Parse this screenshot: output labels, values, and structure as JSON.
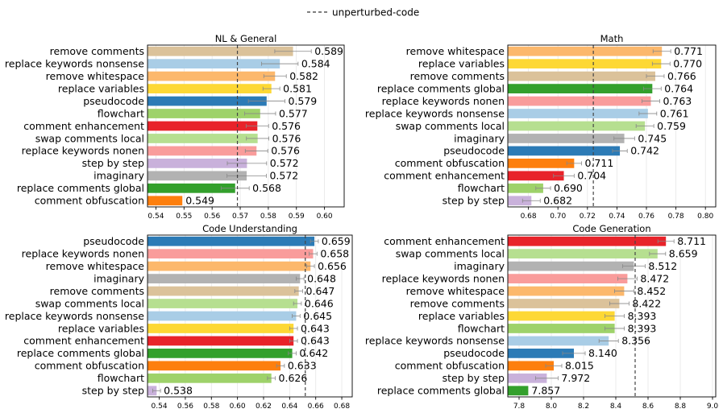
{
  "legend": {
    "label": "unperturbed-code",
    "placement": "top-center"
  },
  "chart_data": [
    {
      "type": "bar",
      "orientation": "horizontal",
      "title": "NL & General",
      "reference_line": 0.569,
      "xlim": [
        0.537,
        0.607
      ],
      "xticks": [
        0.54,
        0.55,
        0.56,
        0.57,
        0.58,
        0.59,
        0.6
      ],
      "xtick_labels": [
        "0.54",
        "0.55",
        "0.56",
        "0.57",
        "0.58",
        "0.59",
        "0.60"
      ],
      "bars": [
        {
          "label": "remove comments",
          "value": 0.5888,
          "value_label": "0.589",
          "err": 0.0065,
          "color": "#dbc29a"
        },
        {
          "label": "replace keywords nonsense",
          "value": 0.5841,
          "value_label": "0.584",
          "err": 0.0065,
          "color": "#a9cde6"
        },
        {
          "label": "remove whitespace",
          "value": 0.5824,
          "value_label": "0.582",
          "err": 0.004,
          "color": "#fcb86c"
        },
        {
          "label": "replace variables",
          "value": 0.5811,
          "value_label": "0.581",
          "err": 0.003,
          "color": "#fdd835"
        },
        {
          "label": "pseudocode",
          "value": 0.5794,
          "value_label": "0.579",
          "err": 0.0065,
          "color": "#2c7bb6"
        },
        {
          "label": "flowchart",
          "value": 0.5771,
          "value_label": "0.577",
          "err": 0.0055,
          "color": "#9ed26a"
        },
        {
          "label": "comment enhancement",
          "value": 0.5761,
          "value_label": "0.576",
          "err": 0.004,
          "color": "#e8232a"
        },
        {
          "label": "swap comments local",
          "value": 0.5762,
          "value_label": "0.576",
          "err": 0.004,
          "color": "#b6df90"
        },
        {
          "label": "replace keywords nonen",
          "value": 0.5758,
          "value_label": "0.576",
          "err": 0.004,
          "color": "#f99c9b"
        },
        {
          "label": "step by step",
          "value": 0.5724,
          "value_label": "0.572",
          "err": 0.007,
          "color": "#c9b1db"
        },
        {
          "label": "imaginary",
          "value": 0.5723,
          "value_label": "0.572",
          "err": 0.007,
          "color": "#b2b2b2"
        },
        {
          "label": "replace comments global",
          "value": 0.5682,
          "value_label": "0.568",
          "err": 0.005,
          "color": "#33a02c"
        },
        {
          "label": "comment obfuscation",
          "value": 0.5494,
          "value_label": "0.549",
          "err": 0.0,
          "color": "#fd7f0e"
        }
      ]
    },
    {
      "type": "bar",
      "orientation": "horizontal",
      "title": "Math",
      "reference_line": 0.724,
      "xlim": [
        0.666,
        0.807
      ],
      "xticks": [
        0.68,
        0.7,
        0.72,
        0.74,
        0.76,
        0.78,
        0.8
      ],
      "xtick_labels": [
        "0.68",
        "0.70",
        "0.72",
        "0.74",
        "0.76",
        "0.78",
        "0.80"
      ],
      "bars": [
        {
          "label": "remove whitespace",
          "value": 0.7705,
          "value_label": "0.771",
          "err": 0.006,
          "color": "#fcb86c"
        },
        {
          "label": "replace variables",
          "value": 0.77,
          "value_label": "0.770",
          "err": 0.006,
          "color": "#fdd835"
        },
        {
          "label": "remove comments",
          "value": 0.766,
          "value_label": "0.766",
          "err": 0.006,
          "color": "#dbc29a"
        },
        {
          "label": "replace comments global",
          "value": 0.764,
          "value_label": "0.764",
          "err": 0.006,
          "color": "#33a02c"
        },
        {
          "label": "replace keywords nonen",
          "value": 0.763,
          "value_label": "0.763",
          "err": 0.006,
          "color": "#f99c9b"
        },
        {
          "label": "replace keywords nonsense",
          "value": 0.761,
          "value_label": "0.761",
          "err": 0.006,
          "color": "#a9cde6"
        },
        {
          "label": "swap comments local",
          "value": 0.759,
          "value_label": "0.759",
          "err": 0.006,
          "color": "#b6df90"
        },
        {
          "label": "imaginary",
          "value": 0.745,
          "value_label": "0.745",
          "err": 0.007,
          "color": "#b2b2b2"
        },
        {
          "label": "pseudocode",
          "value": 0.742,
          "value_label": "0.742",
          "err": 0.005,
          "color": "#2c7bb6"
        },
        {
          "label": "comment obfuscation",
          "value": 0.711,
          "value_label": "0.711",
          "err": 0.005,
          "color": "#fd7f0e"
        },
        {
          "label": "comment enhancement",
          "value": 0.704,
          "value_label": "0.704",
          "err": 0.007,
          "color": "#e8232a"
        },
        {
          "label": "flowchart",
          "value": 0.69,
          "value_label": "0.690",
          "err": 0.005,
          "color": "#9ed26a"
        },
        {
          "label": "step by step",
          "value": 0.682,
          "value_label": "0.682",
          "err": 0.006,
          "color": "#c9b1db"
        }
      ]
    },
    {
      "type": "bar",
      "orientation": "horizontal",
      "title": "Code Understanding",
      "reference_line": 0.652,
      "xlim": [
        0.531,
        0.688
      ],
      "xticks": [
        0.54,
        0.56,
        0.58,
        0.6,
        0.62,
        0.64,
        0.66,
        0.68
      ],
      "xtick_labels": [
        "0.54",
        "0.56",
        "0.58",
        "0.60",
        "0.62",
        "0.64",
        "0.66",
        "0.68"
      ],
      "bars": [
        {
          "label": "pseudocode",
          "value": 0.659,
          "value_label": "0.659",
          "err": 0.003,
          "color": "#2c7bb6"
        },
        {
          "label": "replace keywords nonen",
          "value": 0.658,
          "value_label": "0.658",
          "err": 0.003,
          "color": "#f99c9b"
        },
        {
          "label": "remove whitespace",
          "value": 0.656,
          "value_label": "0.656",
          "err": 0.003,
          "color": "#fcb86c"
        },
        {
          "label": "imaginary",
          "value": 0.648,
          "value_label": "0.648",
          "err": 0.003,
          "color": "#b2b2b2"
        },
        {
          "label": "remove comments",
          "value": 0.647,
          "value_label": "0.647",
          "err": 0.003,
          "color": "#dbc29a"
        },
        {
          "label": "swap comments local",
          "value": 0.646,
          "value_label": "0.646",
          "err": 0.003,
          "color": "#b6df90"
        },
        {
          "label": "replace keywords nonsense",
          "value": 0.645,
          "value_label": "0.645",
          "err": 0.003,
          "color": "#a9cde6"
        },
        {
          "label": "replace variables",
          "value": 0.643,
          "value_label": "0.643",
          "err": 0.003,
          "color": "#fdd835"
        },
        {
          "label": "comment enhancement",
          "value": 0.643,
          "value_label": "0.643",
          "err": 0.003,
          "color": "#e8232a"
        },
        {
          "label": "replace comments global",
          "value": 0.642,
          "value_label": "0.642",
          "err": 0.003,
          "color": "#33a02c"
        },
        {
          "label": "comment obfuscation",
          "value": 0.633,
          "value_label": "0.633",
          "err": 0.003,
          "color": "#fd7f0e"
        },
        {
          "label": "flowchart",
          "value": 0.626,
          "value_label": "0.626",
          "err": 0.003,
          "color": "#9ed26a"
        },
        {
          "label": "step by step",
          "value": 0.538,
          "value_label": "0.538",
          "err": 0.003,
          "color": "#c9b1db"
        }
      ]
    },
    {
      "type": "bar",
      "orientation": "horizontal",
      "title": "Code Generation",
      "reference_line": 8.52,
      "xlim": [
        7.73,
        9.02
      ],
      "xticks": [
        7.8,
        8.0,
        8.2,
        8.4,
        8.6,
        8.8,
        9.0
      ],
      "xtick_labels": [
        "7.8",
        "8.0",
        "8.2",
        "8.4",
        "8.6",
        "8.8",
        "9.0"
      ],
      "bars": [
        {
          "label": "comment enhancement",
          "value": 8.711,
          "value_label": "8.711",
          "err": 0.05,
          "color": "#e8232a"
        },
        {
          "label": "swap comments local",
          "value": 8.659,
          "value_label": "8.659",
          "err": 0.05,
          "color": "#b6df90"
        },
        {
          "label": "imaginary",
          "value": 8.512,
          "value_label": "8.512",
          "err": 0.07,
          "color": "#b2b2b2"
        },
        {
          "label": "replace keywords nonen",
          "value": 8.472,
          "value_label": "8.472",
          "err": 0.06,
          "color": "#f99c9b"
        },
        {
          "label": "remove whitespace",
          "value": 8.452,
          "value_label": "8.452",
          "err": 0.06,
          "color": "#fcb86c"
        },
        {
          "label": "remove comments",
          "value": 8.422,
          "value_label": "8.422",
          "err": 0.06,
          "color": "#dbc29a"
        },
        {
          "label": "replace variables",
          "value": 8.393,
          "value_label": "8.393",
          "err": 0.06,
          "color": "#fdd835"
        },
        {
          "label": "flowchart",
          "value": 8.393,
          "value_label": "8.393",
          "err": 0.06,
          "color": "#9ed26a"
        },
        {
          "label": "replace keywords nonsense",
          "value": 8.356,
          "value_label": "8.356",
          "err": 0.06,
          "color": "#a9cde6"
        },
        {
          "label": "pseudocode",
          "value": 8.14,
          "value_label": "8.140",
          "err": 0.07,
          "color": "#2c7bb6"
        },
        {
          "label": "comment obfuscation",
          "value": 8.015,
          "value_label": "8.015",
          "err": 0.05,
          "color": "#fd7f0e"
        },
        {
          "label": "step by step",
          "value": 7.972,
          "value_label": "7.972",
          "err": 0.07,
          "color": "#c9b1db"
        },
        {
          "label": "replace comments global",
          "value": 7.857,
          "value_label": "7.857",
          "err": 0.0,
          "color": "#33a02c"
        }
      ]
    }
  ]
}
